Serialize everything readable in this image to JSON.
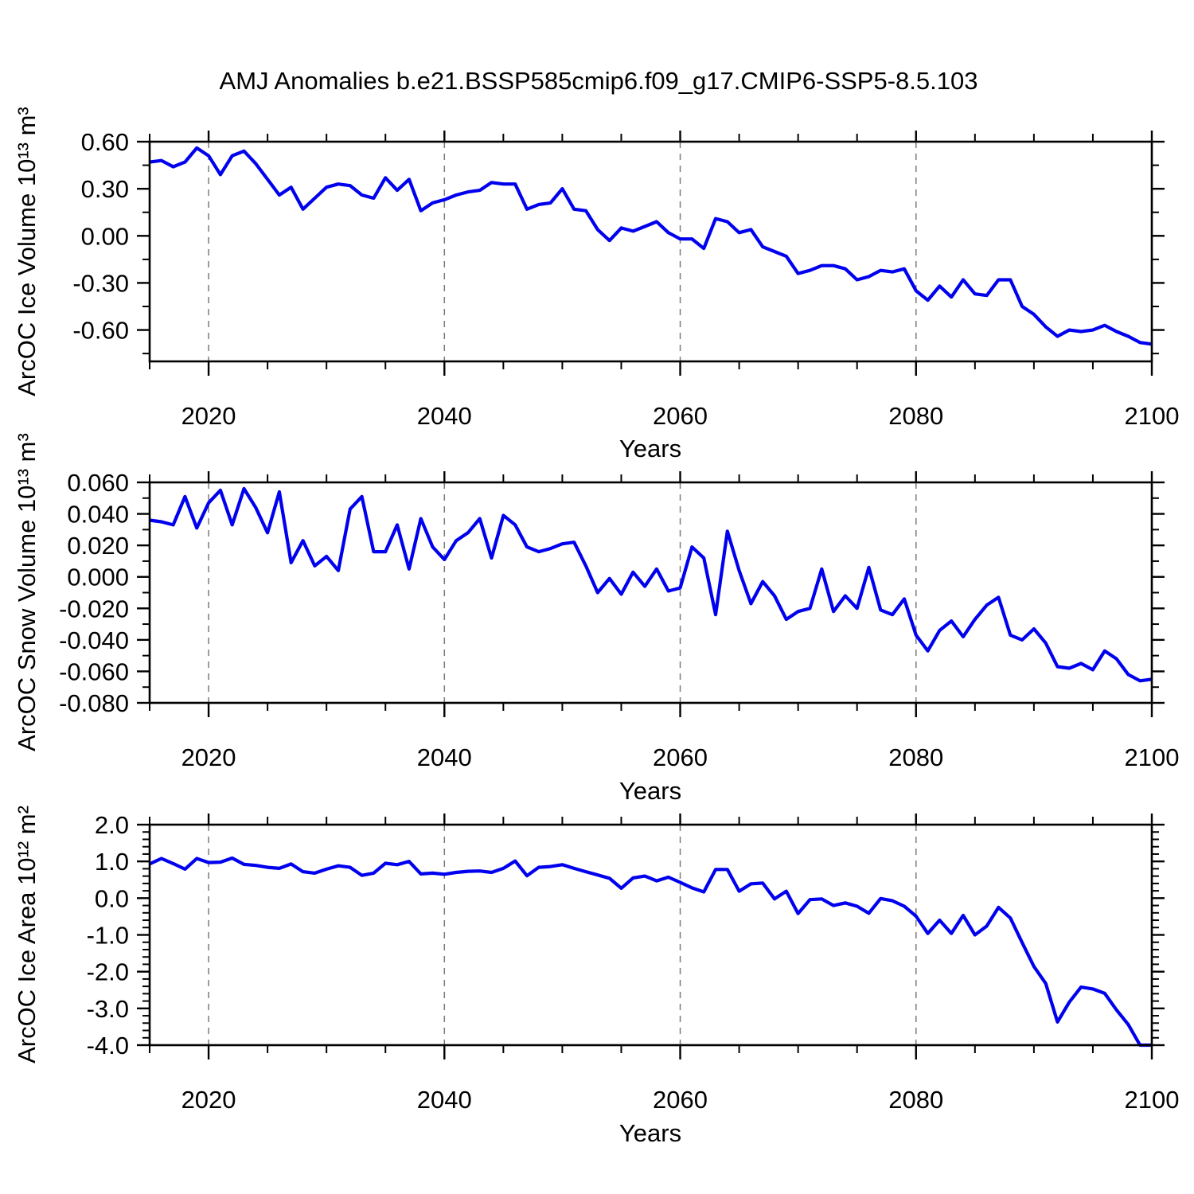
{
  "title": "AMJ Anomalies b.e21.BSSP585cmip6.f09_g17.CMIP6-SSP5-8.5.103",
  "colors": {
    "line": "#0000EE",
    "grid": "#7a7a7a",
    "frame": "#000000",
    "background": "#ffffff"
  },
  "chart_data": [
    {
      "type": "line",
      "ylabel": "ArcOC Ice Volume 10¹³ m³",
      "xlabel": "Years",
      "x_start": 2015,
      "x_end": 2100,
      "ylim": [
        -0.8,
        0.6
      ],
      "yticks": {
        "major": [
          0.6,
          0.3,
          0.0,
          -0.3,
          -0.6
        ],
        "labels": [
          "0.60",
          "0.30",
          "0.00",
          "-0.30",
          "-0.60"
        ],
        "minor_step": 0.15
      },
      "xticks": {
        "major": [
          2020,
          2040,
          2060,
          2080,
          2100
        ],
        "labels": [
          "2020",
          "2040",
          "2060",
          "2080",
          "2100"
        ],
        "minor_step": 5
      },
      "grid_x": [
        2020,
        2040,
        2060,
        2080
      ],
      "values": [
        0.47,
        0.48,
        0.44,
        0.47,
        0.56,
        0.51,
        0.39,
        0.51,
        0.54,
        0.46,
        0.36,
        0.26,
        0.31,
        0.17,
        0.24,
        0.31,
        0.33,
        0.32,
        0.26,
        0.24,
        0.37,
        0.29,
        0.36,
        0.16,
        0.21,
        0.23,
        0.26,
        0.28,
        0.29,
        0.34,
        0.33,
        0.33,
        0.17,
        0.2,
        0.21,
        0.3,
        0.17,
        0.16,
        0.04,
        -0.03,
        0.05,
        0.03,
        0.06,
        0.09,
        0.02,
        -0.02,
        -0.02,
        -0.08,
        0.11,
        0.09,
        0.02,
        0.04,
        -0.07,
        -0.1,
        -0.13,
        -0.24,
        -0.22,
        -0.19,
        -0.19,
        -0.21,
        -0.28,
        -0.26,
        -0.22,
        -0.23,
        -0.21,
        -0.35,
        -0.41,
        -0.32,
        -0.39,
        -0.28,
        -0.37,
        -0.38,
        -0.28,
        -0.28,
        -0.45,
        -0.5,
        -0.58,
        -0.64,
        -0.6,
        -0.61,
        -0.6,
        -0.57,
        -0.61,
        -0.64,
        -0.68,
        -0.69
      ]
    },
    {
      "type": "line",
      "ylabel": "ArcOC Snow Volume 10¹³ m³",
      "xlabel": "Years",
      "x_start": 2015,
      "x_end": 2100,
      "ylim": [
        -0.08,
        0.06
      ],
      "yticks": {
        "major": [
          0.06,
          0.04,
          0.02,
          0.0,
          -0.02,
          -0.04,
          -0.06,
          -0.08
        ],
        "labels": [
          "0.060",
          "0.040",
          "0.020",
          "0.000",
          "-0.020",
          "-0.040",
          "-0.060",
          "-0.080"
        ],
        "minor_step": 0.01
      },
      "xticks": {
        "major": [
          2020,
          2040,
          2060,
          2080,
          2100
        ],
        "labels": [
          "2020",
          "2040",
          "2060",
          "2080",
          "2100"
        ],
        "minor_step": 5
      },
      "grid_x": [
        2020,
        2040,
        2060,
        2080
      ],
      "values": [
        0.036,
        0.035,
        0.033,
        0.051,
        0.031,
        0.047,
        0.055,
        0.033,
        0.056,
        0.044,
        0.028,
        0.054,
        0.009,
        0.023,
        0.007,
        0.013,
        0.004,
        0.043,
        0.051,
        0.016,
        0.016,
        0.033,
        0.005,
        0.037,
        0.019,
        0.011,
        0.023,
        0.028,
        0.037,
        0.012,
        0.039,
        0.033,
        0.019,
        0.016,
        0.018,
        0.021,
        0.022,
        0.007,
        -0.01,
        -0.001,
        -0.011,
        0.003,
        -0.006,
        0.005,
        -0.009,
        -0.007,
        0.019,
        0.012,
        -0.024,
        0.029,
        0.004,
        -0.017,
        -0.003,
        -0.012,
        -0.027,
        -0.022,
        -0.02,
        0.005,
        -0.022,
        -0.012,
        -0.02,
        0.006,
        -0.021,
        -0.024,
        -0.014,
        -0.037,
        -0.047,
        -0.034,
        -0.028,
        -0.038,
        -0.027,
        -0.018,
        -0.013,
        -0.037,
        -0.04,
        -0.033,
        -0.042,
        -0.057,
        -0.058,
        -0.055,
        -0.059,
        -0.047,
        -0.052,
        -0.062,
        -0.066,
        -0.065
      ]
    },
    {
      "type": "line",
      "ylabel": "ArcOC Ice Area 10¹² m²",
      "xlabel": "Years",
      "x_start": 2015,
      "x_end": 2100,
      "ylim": [
        -4.0,
        2.0
      ],
      "yticks": {
        "major": [
          2.0,
          1.0,
          0.0,
          -1.0,
          -2.0,
          -3.0,
          -4.0
        ],
        "labels": [
          "2.0",
          "1.0",
          "0.0",
          "-1.0",
          "-2.0",
          "-3.0",
          "-4.0"
        ],
        "minor_step": 0.2
      },
      "xticks": {
        "major": [
          2020,
          2040,
          2060,
          2080,
          2100
        ],
        "labels": [
          "2020",
          "2040",
          "2060",
          "2080",
          "2100"
        ],
        "minor_step": 5
      },
      "grid_x": [
        2020,
        2040,
        2060,
        2080
      ],
      "values": [
        0.93,
        1.08,
        0.94,
        0.79,
        1.08,
        0.97,
        0.98,
        1.09,
        0.92,
        0.89,
        0.84,
        0.81,
        0.93,
        0.72,
        0.68,
        0.79,
        0.88,
        0.84,
        0.62,
        0.68,
        0.95,
        0.91,
        1.0,
        0.66,
        0.68,
        0.65,
        0.7,
        0.73,
        0.74,
        0.7,
        0.81,
        1.01,
        0.61,
        0.84,
        0.86,
        0.91,
        0.81,
        0.72,
        0.63,
        0.54,
        0.27,
        0.55,
        0.6,
        0.47,
        0.57,
        0.43,
        0.28,
        0.17,
        0.78,
        0.78,
        0.19,
        0.39,
        0.41,
        -0.02,
        0.19,
        -0.42,
        -0.04,
        -0.02,
        -0.2,
        -0.13,
        -0.22,
        -0.41,
        -0.01,
        -0.07,
        -0.22,
        -0.49,
        -0.96,
        -0.6,
        -0.96,
        -0.47,
        -1.0,
        -0.76,
        -0.25,
        -0.54,
        -1.21,
        -1.86,
        -2.32,
        -3.37,
        -2.83,
        -2.42,
        -2.47,
        -2.59,
        -3.04,
        -3.44,
        -4.0,
        -4.0
      ]
    }
  ]
}
